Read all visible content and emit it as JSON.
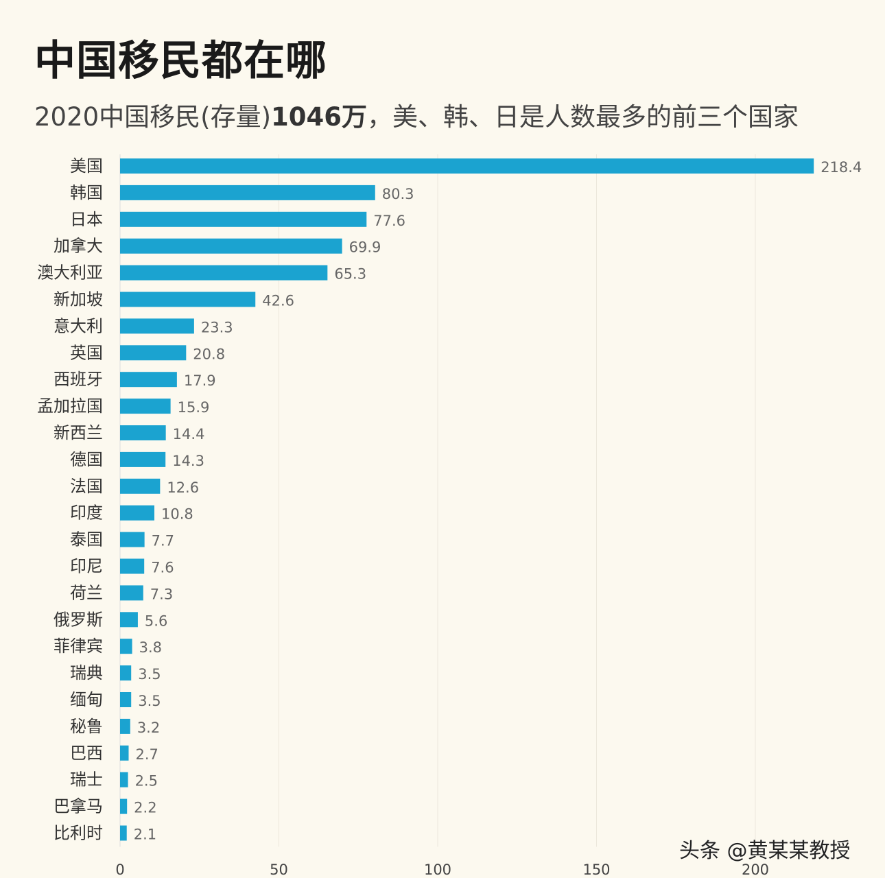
{
  "chart_data": {
    "type": "bar",
    "orientation": "horizontal",
    "title": "中国移民都在哪",
    "subtitle": {
      "prefix": "2020中国移民(存量)",
      "highlight": "1046万",
      "suffix": "，美、韩、日是人数最多的前三个国家"
    },
    "categories": [
      "美国",
      "韩国",
      "日本",
      "加拿大",
      "澳大利亚",
      "新加坡",
      "意大利",
      "英国",
      "西班牙",
      "孟加拉国",
      "新西兰",
      "德国",
      "法国",
      "印度",
      "泰国",
      "印尼",
      "荷兰",
      "俄罗斯",
      "菲律宾",
      "瑞典",
      "缅甸",
      "秘鲁",
      "巴西",
      "瑞士",
      "巴拿马",
      "比利时"
    ],
    "values": [
      218.4,
      80.3,
      77.6,
      69.9,
      65.3,
      42.6,
      23.3,
      20.8,
      17.9,
      15.9,
      14.4,
      14.3,
      12.6,
      10.8,
      7.7,
      7.6,
      7.3,
      5.6,
      3.8,
      3.5,
      3.5,
      3.2,
      2.7,
      2.5,
      2.2,
      2.1
    ],
    "xlim": [
      0,
      220
    ],
    "xticks": [
      "0",
      "50",
      "100",
      "150",
      "200"
    ],
    "grid": true,
    "bar_color": "#1ba3d0",
    "background": "#fcf9ef"
  },
  "watermark": "头条 @黄某某教授"
}
